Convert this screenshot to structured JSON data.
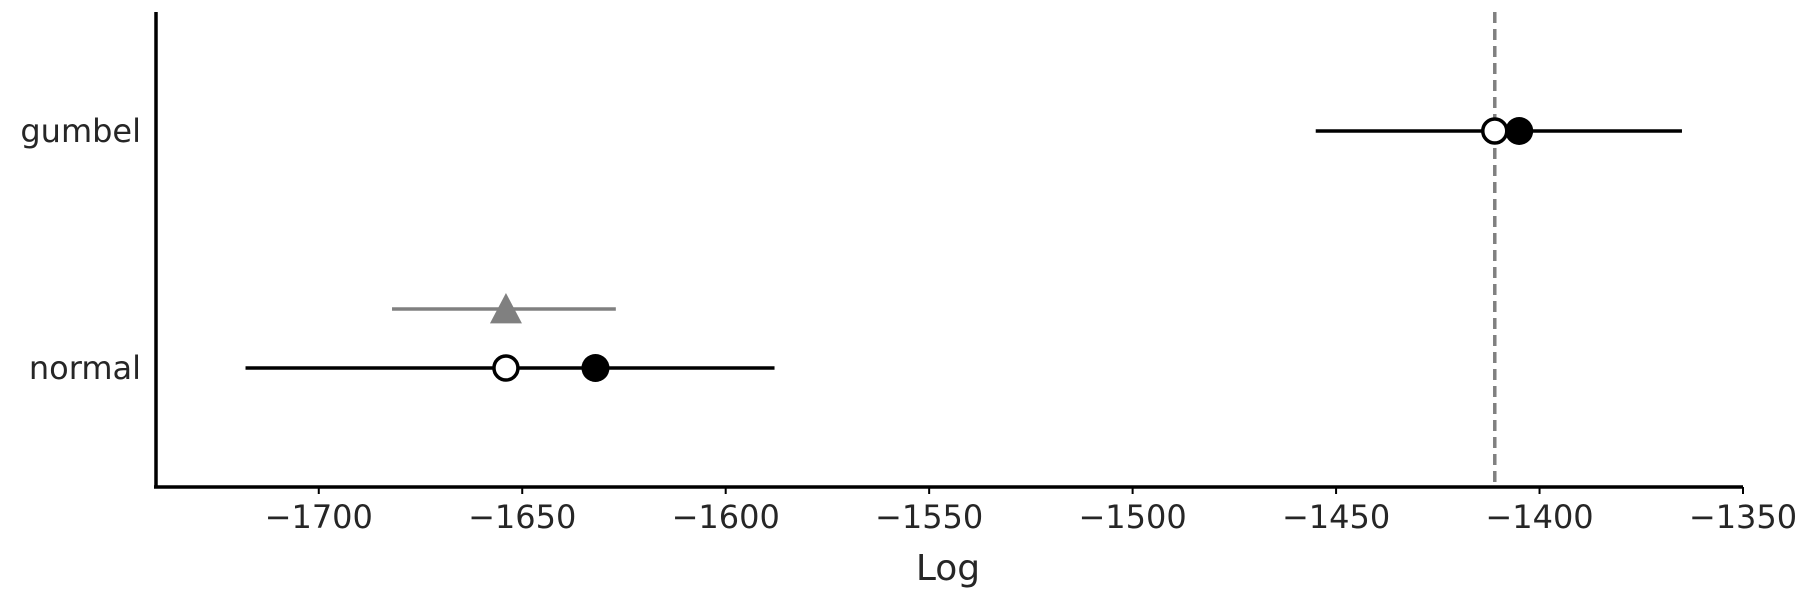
{
  "chart_data": {
    "type": "pointrange",
    "xlabel": "Log",
    "xlim": [
      -1740,
      -1350
    ],
    "xticks": [
      -1700,
      -1650,
      -1600,
      -1550,
      -1500,
      -1450,
      -1400,
      -1350
    ],
    "xtick_labels": [
      "−1700",
      "−1650",
      "−1600",
      "−1550",
      "−1500",
      "−1450",
      "−1400",
      "−1350"
    ],
    "reference_line": -1411,
    "models": [
      {
        "label": "gumbel",
        "estimate": -1405,
        "in_sample": -1411,
        "interval": [
          -1455,
          -1365
        ],
        "difference": null
      },
      {
        "label": "normal",
        "estimate": -1632,
        "in_sample": -1654,
        "interval": [
          -1718,
          -1588
        ],
        "difference": {
          "value": -1654,
          "interval": [
            -1682,
            -1627
          ]
        }
      }
    ],
    "colors": {
      "main": "#000000",
      "reference": "#808080",
      "difference": "#808080",
      "text": "#262626"
    },
    "grid": false,
    "legend": "none"
  }
}
